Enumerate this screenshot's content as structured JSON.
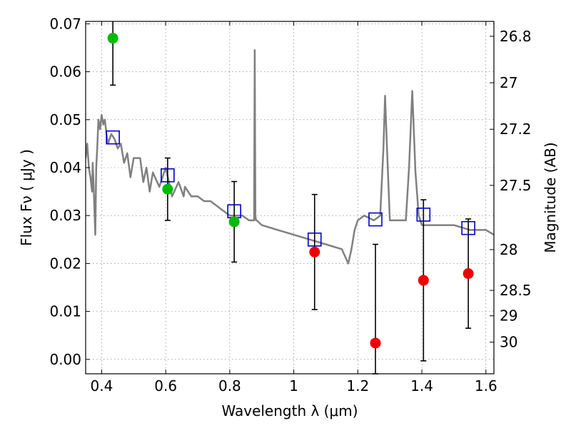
{
  "chart_data": {
    "type": "scatter",
    "xlabel": "Wavelength  λ (μm)",
    "ylabel": "Flux  Fν  ( μJy )",
    "ylabel_right": "Magnitude (AB)",
    "xlim": [
      0.35,
      1.625
    ],
    "ylim": [
      -0.003,
      0.0705
    ],
    "grid": true,
    "x_ticks": [
      0.4,
      0.6,
      0.8,
      1.0,
      1.2,
      1.4,
      1.6
    ],
    "x_tick_labels": [
      "0.4",
      "0.6",
      "0.8",
      "1",
      "1.2",
      "1.4",
      "1.6"
    ],
    "y_ticks": [
      0.0,
      0.01,
      0.02,
      0.03,
      0.04,
      0.05,
      0.06,
      0.07
    ],
    "y_tick_labels": [
      "0.00",
      "0.01",
      "0.02",
      "0.03",
      "0.04",
      "0.05",
      "0.06",
      "0.07"
    ],
    "right_ticks": [
      {
        "label": "26.8",
        "flux": 0.0674
      },
      {
        "label": "27",
        "flux": 0.0577
      },
      {
        "label": "27.2",
        "flux": 0.048
      },
      {
        "label": "27.5",
        "flux": 0.0363
      },
      {
        "label": "28",
        "flux": 0.0229
      },
      {
        "label": "28.5",
        "flux": 0.0144
      },
      {
        "label": "29",
        "flux": 0.0091
      },
      {
        "label": "30",
        "flux": 0.0036
      }
    ],
    "colors": {
      "model": "#808080",
      "green": "#00bb00",
      "red": "#ee0000",
      "box": "#0000cc",
      "error": "#000000"
    },
    "model_spectrum": {
      "x": [
        0.35,
        0.355,
        0.36,
        0.365,
        0.37,
        0.372,
        0.375,
        0.38,
        0.383,
        0.386,
        0.39,
        0.395,
        0.4,
        0.405,
        0.41,
        0.415,
        0.42,
        0.43,
        0.44,
        0.45,
        0.46,
        0.47,
        0.48,
        0.49,
        0.5,
        0.52,
        0.53,
        0.54,
        0.55,
        0.56,
        0.58,
        0.6,
        0.62,
        0.64,
        0.656,
        0.66,
        0.68,
        0.7,
        0.72,
        0.74,
        0.76,
        0.78,
        0.8,
        0.82,
        0.84,
        0.86,
        0.876,
        0.878,
        0.88,
        0.882,
        0.884,
        0.9,
        0.95,
        1.0,
        1.05,
        1.1,
        1.15,
        1.17,
        1.18,
        1.19,
        1.2,
        1.22,
        1.25,
        1.27,
        1.28,
        1.285,
        1.29,
        1.3,
        1.35,
        1.36,
        1.37,
        1.38,
        1.39,
        1.4,
        1.45,
        1.5,
        1.55,
        1.6,
        1.625
      ],
      "y": [
        0.042,
        0.045,
        0.04,
        0.038,
        0.035,
        0.041,
        0.036,
        0.026,
        0.04,
        0.044,
        0.05,
        0.048,
        0.051,
        0.049,
        0.05,
        0.047,
        0.045,
        0.047,
        0.046,
        0.044,
        0.045,
        0.041,
        0.043,
        0.038,
        0.042,
        0.042,
        0.037,
        0.04,
        0.035,
        0.039,
        0.036,
        0.04,
        0.034,
        0.037,
        0.034,
        0.036,
        0.034,
        0.034,
        0.033,
        0.033,
        0.032,
        0.031,
        0.03,
        0.03,
        0.03,
        0.029,
        0.029,
        0.0645,
        0.03,
        0.029,
        0.029,
        0.028,
        0.027,
        0.026,
        0.025,
        0.024,
        0.023,
        0.02,
        0.023,
        0.027,
        0.029,
        0.03,
        0.029,
        0.03,
        0.044,
        0.055,
        0.046,
        0.029,
        0.029,
        0.04,
        0.056,
        0.039,
        0.03,
        0.028,
        0.028,
        0.028,
        0.027,
        0.027,
        0.026
      ]
    },
    "series": [
      {
        "marker": "box",
        "color": "#0000cc",
        "points": [
          {
            "x": 0.435,
            "y": 0.0463
          },
          {
            "x": 0.606,
            "y": 0.0384
          },
          {
            "x": 0.814,
            "y": 0.0309
          },
          {
            "x": 1.065,
            "y": 0.025
          },
          {
            "x": 1.255,
            "y": 0.0292
          },
          {
            "x": 1.405,
            "y": 0.0302
          },
          {
            "x": 1.545,
            "y": 0.0274
          }
        ]
      },
      {
        "marker": "circle",
        "color": "#00bb00",
        "points": [
          {
            "x": 0.435,
            "y": 0.067,
            "err_low": 0.0098,
            "err_high": 0.0035
          },
          {
            "x": 0.606,
            "y": 0.0355,
            "err_low": 0.0065,
            "err_high": 0.0065
          },
          {
            "x": 0.814,
            "y": 0.0287,
            "err_low": 0.0084,
            "err_high": 0.0084
          }
        ]
      },
      {
        "marker": "circle",
        "color": "#ee0000",
        "points": [
          {
            "x": 1.065,
            "y": 0.0224,
            "err_low": 0.012,
            "err_high": 0.012
          },
          {
            "x": 1.255,
            "y": 0.0034,
            "err_low": 0.0064,
            "err_high": 0.0206
          },
          {
            "x": 1.405,
            "y": 0.0165,
            "err_low": 0.0168,
            "err_high": 0.0168
          },
          {
            "x": 1.545,
            "y": 0.0179,
            "err_low": 0.0114,
            "err_high": 0.0114
          }
        ]
      }
    ]
  }
}
